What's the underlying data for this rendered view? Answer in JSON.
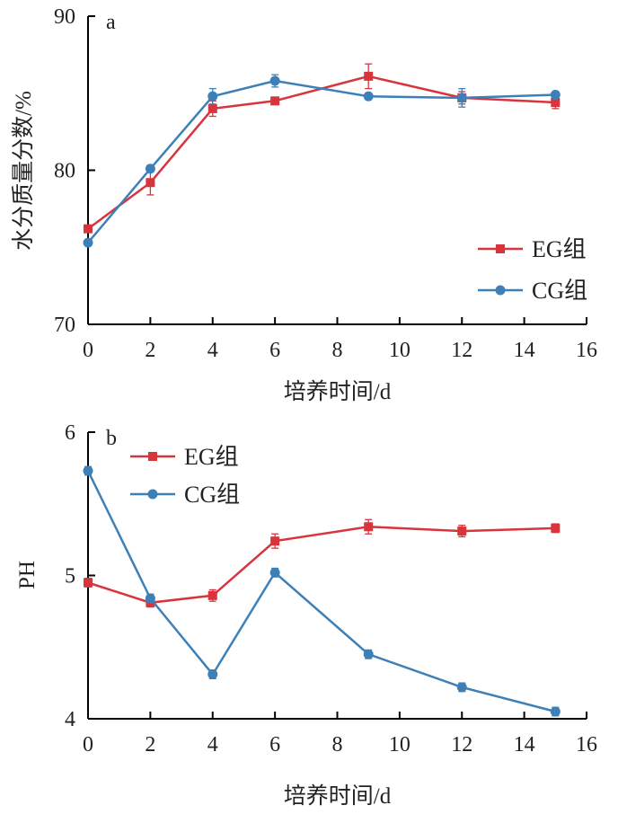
{
  "chart_data": [
    {
      "type": "line",
      "panel_label": "a",
      "xlabel": "培养时间/d",
      "ylabel": "水分质量分数/%",
      "xlim": [
        0,
        16
      ],
      "ylim": [
        70,
        90
      ],
      "xticks": [
        0,
        2,
        4,
        6,
        8,
        10,
        12,
        14,
        16
      ],
      "yticks": [
        70,
        80,
        90
      ],
      "legend_position": "lower-right",
      "series": [
        {
          "name": "EG组",
          "color": "#d8343c",
          "marker": "square",
          "x": [
            0,
            2,
            4,
            6,
            9,
            12,
            15
          ],
          "y": [
            76.2,
            79.2,
            84.0,
            84.5,
            86.1,
            84.7,
            84.4
          ],
          "err": [
            0.2,
            0.8,
            0.5,
            0.2,
            0.8,
            0.4,
            0.4
          ]
        },
        {
          "name": "CG组",
          "color": "#3d80b8",
          "marker": "circle",
          "x": [
            0,
            2,
            4,
            6,
            9,
            12,
            15
          ],
          "y": [
            75.3,
            80.1,
            84.8,
            85.8,
            84.8,
            84.7,
            84.9
          ],
          "err": [
            0.2,
            0.2,
            0.5,
            0.4,
            0.2,
            0.6,
            0.2
          ]
        }
      ]
    },
    {
      "type": "line",
      "panel_label": "b",
      "xlabel": "培养时间/d",
      "ylabel": "PH",
      "xlim": [
        0,
        16
      ],
      "ylim": [
        4,
        6
      ],
      "xticks": [
        0,
        2,
        4,
        6,
        8,
        10,
        12,
        14,
        16
      ],
      "yticks": [
        4,
        5,
        6
      ],
      "legend_position": "top-left",
      "series": [
        {
          "name": "EG组",
          "color": "#d8343c",
          "marker": "square",
          "x": [
            0,
            2,
            4,
            6,
            9,
            12,
            15
          ],
          "y": [
            4.95,
            4.81,
            4.86,
            5.24,
            5.34,
            5.31,
            5.33
          ],
          "err": [
            0.03,
            0.03,
            0.04,
            0.05,
            0.05,
            0.04,
            0.03
          ]
        },
        {
          "name": "CG组",
          "color": "#3d80b8",
          "marker": "circle",
          "x": [
            0,
            2,
            4,
            6,
            9,
            12,
            15
          ],
          "y": [
            5.73,
            4.84,
            4.31,
            5.02,
            4.45,
            4.22,
            4.05
          ],
          "err": [
            0.03,
            0.03,
            0.03,
            0.03,
            0.03,
            0.03,
            0.03
          ]
        }
      ]
    }
  ]
}
